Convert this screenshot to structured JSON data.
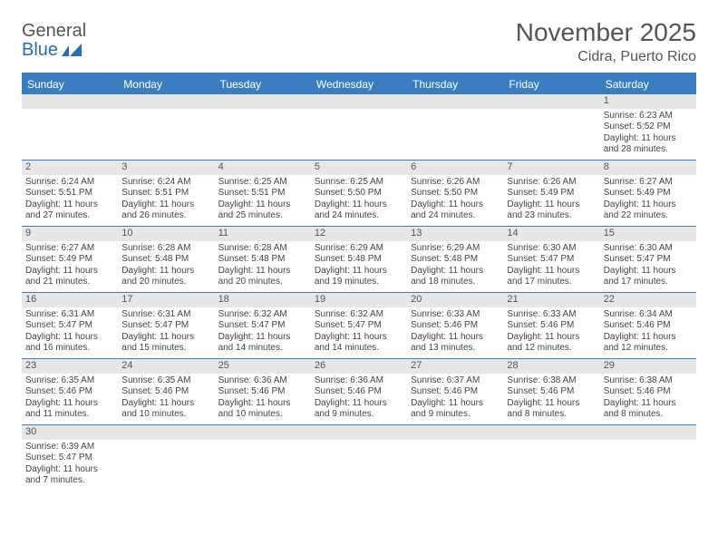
{
  "brand": {
    "name1": "General",
    "name2": "Blue"
  },
  "title": "November 2025",
  "location": "Cidra, Puerto Rico",
  "colors": {
    "header_bg": "#3a7ec1",
    "header_text": "#ffffff",
    "daynum_bg": "#e7e7e7",
    "border": "#3a7ec1",
    "page_bg": "#ffffff"
  },
  "weekdays": [
    "Sunday",
    "Monday",
    "Tuesday",
    "Wednesday",
    "Thursday",
    "Friday",
    "Saturday"
  ],
  "weeks": [
    [
      {
        "n": "",
        "sr": "",
        "ss": "",
        "dl": ""
      },
      {
        "n": "",
        "sr": "",
        "ss": "",
        "dl": ""
      },
      {
        "n": "",
        "sr": "",
        "ss": "",
        "dl": ""
      },
      {
        "n": "",
        "sr": "",
        "ss": "",
        "dl": ""
      },
      {
        "n": "",
        "sr": "",
        "ss": "",
        "dl": ""
      },
      {
        "n": "",
        "sr": "",
        "ss": "",
        "dl": ""
      },
      {
        "n": "1",
        "sr": "Sunrise: 6:23 AM",
        "ss": "Sunset: 5:52 PM",
        "dl": "Daylight: 11 hours and 28 minutes."
      }
    ],
    [
      {
        "n": "2",
        "sr": "Sunrise: 6:24 AM",
        "ss": "Sunset: 5:51 PM",
        "dl": "Daylight: 11 hours and 27 minutes."
      },
      {
        "n": "3",
        "sr": "Sunrise: 6:24 AM",
        "ss": "Sunset: 5:51 PM",
        "dl": "Daylight: 11 hours and 26 minutes."
      },
      {
        "n": "4",
        "sr": "Sunrise: 6:25 AM",
        "ss": "Sunset: 5:51 PM",
        "dl": "Daylight: 11 hours and 25 minutes."
      },
      {
        "n": "5",
        "sr": "Sunrise: 6:25 AM",
        "ss": "Sunset: 5:50 PM",
        "dl": "Daylight: 11 hours and 24 minutes."
      },
      {
        "n": "6",
        "sr": "Sunrise: 6:26 AM",
        "ss": "Sunset: 5:50 PM",
        "dl": "Daylight: 11 hours and 24 minutes."
      },
      {
        "n": "7",
        "sr": "Sunrise: 6:26 AM",
        "ss": "Sunset: 5:49 PM",
        "dl": "Daylight: 11 hours and 23 minutes."
      },
      {
        "n": "8",
        "sr": "Sunrise: 6:27 AM",
        "ss": "Sunset: 5:49 PM",
        "dl": "Daylight: 11 hours and 22 minutes."
      }
    ],
    [
      {
        "n": "9",
        "sr": "Sunrise: 6:27 AM",
        "ss": "Sunset: 5:49 PM",
        "dl": "Daylight: 11 hours and 21 minutes."
      },
      {
        "n": "10",
        "sr": "Sunrise: 6:28 AM",
        "ss": "Sunset: 5:48 PM",
        "dl": "Daylight: 11 hours and 20 minutes."
      },
      {
        "n": "11",
        "sr": "Sunrise: 6:28 AM",
        "ss": "Sunset: 5:48 PM",
        "dl": "Daylight: 11 hours and 20 minutes."
      },
      {
        "n": "12",
        "sr": "Sunrise: 6:29 AM",
        "ss": "Sunset: 5:48 PM",
        "dl": "Daylight: 11 hours and 19 minutes."
      },
      {
        "n": "13",
        "sr": "Sunrise: 6:29 AM",
        "ss": "Sunset: 5:48 PM",
        "dl": "Daylight: 11 hours and 18 minutes."
      },
      {
        "n": "14",
        "sr": "Sunrise: 6:30 AM",
        "ss": "Sunset: 5:47 PM",
        "dl": "Daylight: 11 hours and 17 minutes."
      },
      {
        "n": "15",
        "sr": "Sunrise: 6:30 AM",
        "ss": "Sunset: 5:47 PM",
        "dl": "Daylight: 11 hours and 17 minutes."
      }
    ],
    [
      {
        "n": "16",
        "sr": "Sunrise: 6:31 AM",
        "ss": "Sunset: 5:47 PM",
        "dl": "Daylight: 11 hours and 16 minutes."
      },
      {
        "n": "17",
        "sr": "Sunrise: 6:31 AM",
        "ss": "Sunset: 5:47 PM",
        "dl": "Daylight: 11 hours and 15 minutes."
      },
      {
        "n": "18",
        "sr": "Sunrise: 6:32 AM",
        "ss": "Sunset: 5:47 PM",
        "dl": "Daylight: 11 hours and 14 minutes."
      },
      {
        "n": "19",
        "sr": "Sunrise: 6:32 AM",
        "ss": "Sunset: 5:47 PM",
        "dl": "Daylight: 11 hours and 14 minutes."
      },
      {
        "n": "20",
        "sr": "Sunrise: 6:33 AM",
        "ss": "Sunset: 5:46 PM",
        "dl": "Daylight: 11 hours and 13 minutes."
      },
      {
        "n": "21",
        "sr": "Sunrise: 6:33 AM",
        "ss": "Sunset: 5:46 PM",
        "dl": "Daylight: 11 hours and 12 minutes."
      },
      {
        "n": "22",
        "sr": "Sunrise: 6:34 AM",
        "ss": "Sunset: 5:46 PM",
        "dl": "Daylight: 11 hours and 12 minutes."
      }
    ],
    [
      {
        "n": "23",
        "sr": "Sunrise: 6:35 AM",
        "ss": "Sunset: 5:46 PM",
        "dl": "Daylight: 11 hours and 11 minutes."
      },
      {
        "n": "24",
        "sr": "Sunrise: 6:35 AM",
        "ss": "Sunset: 5:46 PM",
        "dl": "Daylight: 11 hours and 10 minutes."
      },
      {
        "n": "25",
        "sr": "Sunrise: 6:36 AM",
        "ss": "Sunset: 5:46 PM",
        "dl": "Daylight: 11 hours and 10 minutes."
      },
      {
        "n": "26",
        "sr": "Sunrise: 6:36 AM",
        "ss": "Sunset: 5:46 PM",
        "dl": "Daylight: 11 hours and 9 minutes."
      },
      {
        "n": "27",
        "sr": "Sunrise: 6:37 AM",
        "ss": "Sunset: 5:46 PM",
        "dl": "Daylight: 11 hours and 9 minutes."
      },
      {
        "n": "28",
        "sr": "Sunrise: 6:38 AM",
        "ss": "Sunset: 5:46 PM",
        "dl": "Daylight: 11 hours and 8 minutes."
      },
      {
        "n": "29",
        "sr": "Sunrise: 6:38 AM",
        "ss": "Sunset: 5:46 PM",
        "dl": "Daylight: 11 hours and 8 minutes."
      }
    ],
    [
      {
        "n": "30",
        "sr": "Sunrise: 6:39 AM",
        "ss": "Sunset: 5:47 PM",
        "dl": "Daylight: 11 hours and 7 minutes."
      },
      {
        "n": "",
        "sr": "",
        "ss": "",
        "dl": ""
      },
      {
        "n": "",
        "sr": "",
        "ss": "",
        "dl": ""
      },
      {
        "n": "",
        "sr": "",
        "ss": "",
        "dl": ""
      },
      {
        "n": "",
        "sr": "",
        "ss": "",
        "dl": ""
      },
      {
        "n": "",
        "sr": "",
        "ss": "",
        "dl": ""
      },
      {
        "n": "",
        "sr": "",
        "ss": "",
        "dl": ""
      }
    ]
  ]
}
